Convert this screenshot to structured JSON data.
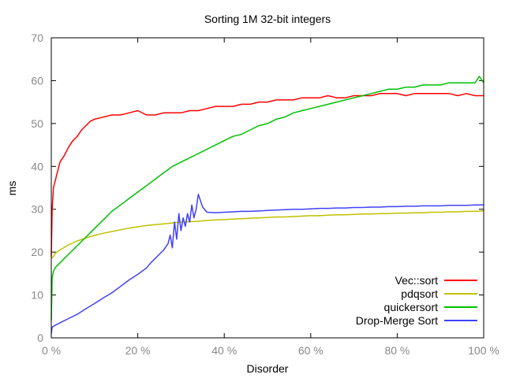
{
  "chart_data": {
    "type": "line",
    "title": "Sorting 1M 32-bit integers",
    "xlabel": "Disorder",
    "ylabel": "ms",
    "xlim": [
      0,
      100
    ],
    "ylim": [
      0,
      70
    ],
    "x_ticks": [
      0,
      20,
      40,
      60,
      80,
      100
    ],
    "x_tick_labels": [
      "0 %",
      "20 %",
      "40 %",
      "60 %",
      "80 %",
      "100 %"
    ],
    "y_ticks": [
      0,
      10,
      20,
      30,
      40,
      50,
      60,
      70
    ],
    "y_tick_labels": [
      "0",
      "10",
      "20",
      "30",
      "40",
      "50",
      "60",
      "70"
    ],
    "grid": false,
    "legend_position": "bottom-right",
    "series": [
      {
        "name": "Vec::sort",
        "color": "#ff0000",
        "x": [
          0,
          0.2,
          0.5,
          1,
          1.5,
          2,
          3,
          4,
          5,
          6,
          7,
          8,
          9,
          10,
          12,
          14,
          16,
          18,
          20,
          22,
          24,
          26,
          28,
          30,
          32,
          34,
          36,
          38,
          40,
          42,
          44,
          46,
          48,
          50,
          52,
          54,
          56,
          58,
          60,
          62,
          64,
          66,
          68,
          70,
          72,
          74,
          76,
          78,
          80,
          82,
          84,
          86,
          88,
          90,
          92,
          94,
          96,
          98,
          100
        ],
        "values": [
          19,
          30,
          35,
          37,
          39,
          41,
          42.5,
          44.5,
          46,
          47,
          48.5,
          49.5,
          50.5,
          51,
          51.5,
          52,
          52,
          52.5,
          53,
          52,
          52,
          52.5,
          52.5,
          52.5,
          53,
          53,
          53.5,
          54,
          54,
          54,
          54.5,
          54.5,
          55,
          55,
          55.5,
          55.5,
          55.5,
          56,
          56,
          56,
          56.5,
          56,
          56,
          56.5,
          56.5,
          56.5,
          57,
          57,
          57,
          56.5,
          57,
          57,
          57,
          57,
          57,
          56.5,
          57,
          56.5,
          56.5
        ]
      },
      {
        "name": "pdqsort",
        "color": "#c0c000",
        "x": [
          0,
          0.5,
          1,
          2,
          4,
          6,
          8,
          10,
          12,
          14,
          16,
          18,
          20,
          22,
          24,
          26,
          28,
          30,
          32,
          34,
          36,
          38,
          40,
          42,
          44,
          46,
          48,
          50,
          52,
          54,
          56,
          58,
          60,
          62,
          64,
          66,
          68,
          70,
          72,
          74,
          76,
          78,
          80,
          82,
          84,
          86,
          88,
          90,
          92,
          94,
          96,
          98,
          100
        ],
        "values": [
          18.5,
          19,
          19.8,
          20.5,
          21.7,
          22.6,
          23.3,
          23.9,
          24.4,
          24.8,
          25.2,
          25.6,
          25.9,
          26.2,
          26.4,
          26.6,
          26.8,
          27,
          27.1,
          27.2,
          27.4,
          27.5,
          27.6,
          27.7,
          27.8,
          27.9,
          28,
          28.1,
          28.2,
          28.2,
          28.3,
          28.4,
          28.5,
          28.5,
          28.6,
          28.7,
          28.7,
          28.8,
          28.9,
          28.9,
          29,
          29,
          29.1,
          29.1,
          29.2,
          29.2,
          29.3,
          29.3,
          29.4,
          29.4,
          29.5,
          29.5,
          29.6
        ]
      },
      {
        "name": "quickersort",
        "color": "#00c000",
        "x": [
          0,
          0.2,
          0.5,
          1,
          2,
          4,
          6,
          8,
          10,
          12,
          14,
          16,
          18,
          20,
          22,
          24,
          26,
          28,
          30,
          32,
          34,
          36,
          38,
          40,
          42,
          44,
          46,
          48,
          50,
          52,
          54,
          56,
          58,
          60,
          62,
          64,
          66,
          68,
          70,
          72,
          74,
          76,
          78,
          80,
          82,
          84,
          86,
          88,
          90,
          92,
          94,
          96,
          98,
          99,
          100
        ],
        "values": [
          4,
          14,
          15.5,
          16.5,
          17.5,
          19.5,
          21.5,
          23.5,
          25.5,
          27.5,
          29.5,
          31,
          32.5,
          34,
          35.5,
          37,
          38.5,
          40,
          41,
          42,
          43,
          44,
          45,
          46,
          47,
          47.5,
          48.5,
          49.5,
          50,
          51,
          51.5,
          52.5,
          53,
          53.5,
          54,
          54.5,
          55,
          55.5,
          56,
          56.5,
          57,
          57.5,
          58,
          58,
          58.5,
          58.5,
          59,
          59,
          59,
          59.5,
          59.5,
          59.5,
          59.5,
          61,
          59.5
        ]
      },
      {
        "name": "Drop-Merge Sort",
        "color": "#4040ff",
        "x": [
          0,
          0.2,
          1,
          2,
          4,
          6,
          8,
          10,
          12,
          14,
          16,
          18,
          20,
          22,
          23,
          24,
          25,
          26,
          27,
          27.5,
          28,
          28.5,
          29,
          29.5,
          30,
          30.5,
          31,
          31.5,
          32,
          32.5,
          33,
          33.5,
          34,
          35,
          36,
          38,
          40,
          42,
          44,
          46,
          48,
          50,
          52,
          54,
          56,
          58,
          60,
          62,
          64,
          66,
          68,
          70,
          72,
          74,
          76,
          78,
          80,
          82,
          84,
          86,
          88,
          90,
          92,
          94,
          96,
          98,
          100
        ],
        "values": [
          1,
          2.5,
          3,
          3.5,
          4.5,
          5.5,
          6.8,
          8,
          9.3,
          10.5,
          12,
          13.5,
          14.8,
          16.3,
          17.5,
          18.5,
          19.5,
          20.5,
          22,
          24,
          21,
          27,
          23,
          29,
          25,
          28,
          26,
          29,
          27,
          31,
          28,
          30,
          33.5,
          30.5,
          29.3,
          29.2,
          29.3,
          29.4,
          29.5,
          29.5,
          29.6,
          29.7,
          29.8,
          29.9,
          30,
          30,
          30.1,
          30.2,
          30.2,
          30.3,
          30.3,
          30.4,
          30.4,
          30.5,
          30.5,
          30.6,
          30.6,
          30.7,
          30.7,
          30.8,
          30.8,
          30.8,
          30.9,
          30.9,
          30.9,
          31,
          31
        ]
      }
    ]
  }
}
